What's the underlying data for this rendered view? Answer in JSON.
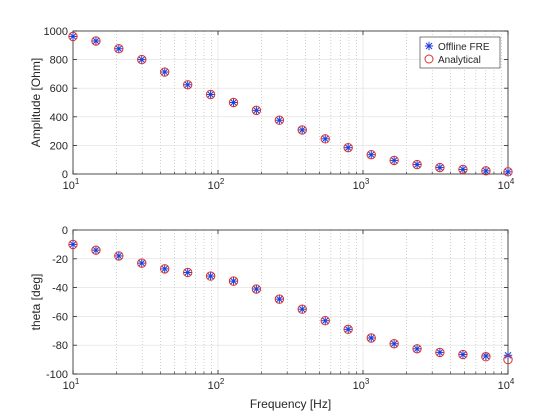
{
  "chart_data": [
    {
      "type": "scatter",
      "xscale": "log",
      "xlim": [
        10,
        10000
      ],
      "ylim": [
        0,
        1000
      ],
      "ylabel": "Amplitude [Ohm]",
      "xlabel": "",
      "grid": true,
      "legend": {
        "location": "top-right",
        "entries": [
          "Offline FRE",
          "Analytical"
        ]
      },
      "yticks": [
        "0",
        "200",
        "400",
        "600",
        "800",
        "1000"
      ],
      "xticks": [
        {
          "base": "10",
          "exp": "1"
        },
        {
          "base": "10",
          "exp": "2"
        },
        {
          "base": "10",
          "exp": "3"
        },
        {
          "base": "10",
          "exp": "4"
        }
      ],
      "x": [
        10,
        14.4,
        20.7,
        29.8,
        42.9,
        61.8,
        88.9,
        128,
        184,
        265,
        381,
        549,
        790,
        1140,
        1640,
        2360,
        3390,
        4890,
        7040,
        10000
      ],
      "series": [
        {
          "name": "Offline FRE",
          "marker": "asterisk",
          "color": "#1f3fd6",
          "values": [
            962,
            930,
            876,
            800,
            713,
            624,
            556,
            500,
            445,
            376,
            308,
            246,
            184,
            135,
            95,
            66,
            45,
            32,
            22,
            15
          ]
        },
        {
          "name": "Analytical",
          "marker": "circle",
          "color": "#e0302c",
          "values": [
            962,
            930,
            876,
            800,
            713,
            624,
            556,
            500,
            445,
            376,
            308,
            246,
            184,
            135,
            95,
            66,
            45,
            32,
            22,
            15
          ]
        }
      ]
    },
    {
      "type": "scatter",
      "xscale": "log",
      "xlim": [
        10,
        10000
      ],
      "ylim": [
        -100,
        0
      ],
      "ylabel": "theta [deg]",
      "xlabel": "Frequency [Hz]",
      "grid": true,
      "yticks": [
        "-100",
        "-80",
        "-60",
        "-40",
        "-20",
        "0"
      ],
      "xticks": [
        {
          "base": "10",
          "exp": "1"
        },
        {
          "base": "10",
          "exp": "2"
        },
        {
          "base": "10",
          "exp": "3"
        },
        {
          "base": "10",
          "exp": "4"
        }
      ],
      "x": [
        10,
        14.4,
        20.7,
        29.8,
        42.9,
        61.8,
        88.9,
        128,
        184,
        265,
        381,
        549,
        790,
        1140,
        1640,
        2360,
        3390,
        4890,
        7040,
        10000
      ],
      "series": [
        {
          "name": "Offline FRE",
          "marker": "asterisk",
          "color": "#1f3fd6",
          "values": [
            -10,
            -14,
            -18,
            -23,
            -27,
            -29.5,
            -32,
            -35.5,
            -41,
            -48,
            -55,
            -63,
            -69,
            -75,
            -79,
            -82.5,
            -85,
            -86.5,
            -87.5,
            -87
          ]
        },
        {
          "name": "Analytical",
          "marker": "circle",
          "color": "#e0302c",
          "values": [
            -10,
            -14,
            -18,
            -23,
            -27,
            -29.5,
            -32,
            -35.5,
            -41,
            -48,
            -55,
            -63,
            -69,
            -75,
            -79,
            -82.5,
            -85,
            -86.5,
            -88,
            -90
          ]
        }
      ]
    }
  ]
}
